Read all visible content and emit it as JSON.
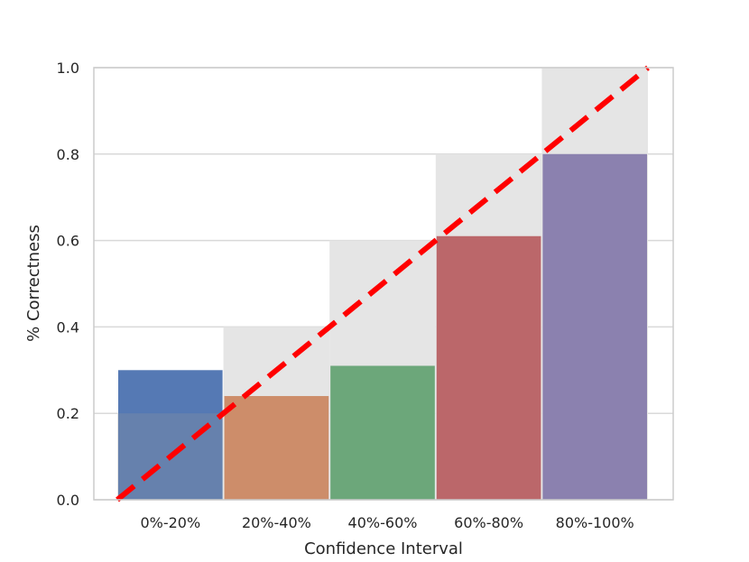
{
  "chart_data": {
    "type": "bar",
    "title": "",
    "xlabel": "Confidence Interval",
    "ylabel": "% Correctness",
    "categories": [
      "0%-20%",
      "20%-40%",
      "40%-60%",
      "60%-80%",
      "80%-100%"
    ],
    "series": [
      {
        "values": [
          0.3,
          0.24,
          0.31,
          0.61,
          0.8
        ]
      }
    ],
    "expected": [
      0.2,
      0.4,
      0.6,
      0.8,
      1.0
    ],
    "bar_colors": [
      "#4c72b0",
      "#dd8452",
      "#55a868",
      "#c44e52",
      "#8172b3"
    ],
    "gap_color": "#e5e5e5",
    "reference_line": {
      "from": [
        0.0,
        0.0
      ],
      "to": [
        1.0,
        1.0
      ],
      "color": "#ff0000",
      "style": "dashed"
    },
    "ylim": [
      0.0,
      1.0
    ],
    "yticks": [
      "0.0",
      "0.2",
      "0.4",
      "0.6",
      "0.8",
      "1.0"
    ],
    "grid": true,
    "legend": "none"
  }
}
